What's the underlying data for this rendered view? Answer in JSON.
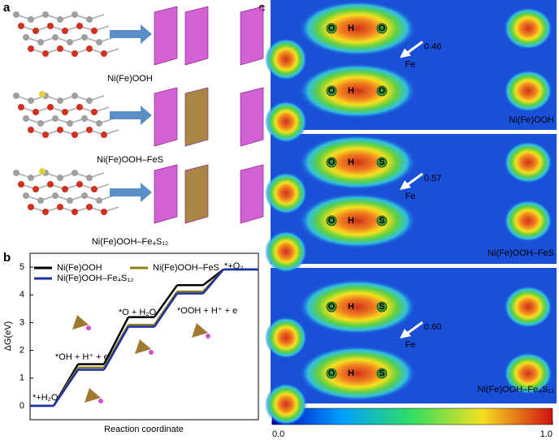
{
  "panel_a": {
    "letter": "a",
    "labels": [
      "Ni(Fe)OOH",
      "Ni(Fe)OOH–FeS",
      "Ni(Fe)OOH–Fe₄S₁₂"
    ]
  },
  "chart_data": {
    "type": "step",
    "letter": "b",
    "categories": [
      "*+H₂O",
      "*OH + H⁺ + e",
      "*O + H₂O",
      "*OOH + H⁺ + e",
      "*+O₂"
    ],
    "series": [
      {
        "name": "Ni(Fe)OOH",
        "color": "#000000",
        "values": [
          0,
          1.5,
          3.2,
          4.35,
          4.92
        ]
      },
      {
        "name": "Ni(Fe)OOH–FeS",
        "color": "#8b7d1a",
        "values": [
          0,
          1.38,
          2.92,
          4.12,
          4.92
        ]
      },
      {
        "name": "Ni(Fe)OOH–Fe₄S₁₂",
        "color": "#1a2fa0",
        "values": [
          0,
          1.3,
          2.85,
          4.05,
          4.92
        ]
      }
    ],
    "ylabel": "ΔG(eV)",
    "xlabel": "Reaction coordinate",
    "ylim": [
      -0.5,
      5.5
    ],
    "yticks": [
      0,
      1,
      2,
      3,
      4,
      5
    ]
  },
  "panel_c": {
    "letter": "c",
    "bands": [
      {
        "name": "Ni(Fe)OOH",
        "atoms": [
          "O",
          "H",
          "O"
        ],
        "fe": "Fe",
        "distance": "0.46"
      },
      {
        "name": "Ni(Fe)OOH–FeS",
        "atoms": [
          "O",
          "H",
          "S"
        ],
        "fe": "Fe",
        "distance": "0.57"
      },
      {
        "name": "Ni(Fe)OOH–Fe₄S₁₂",
        "atoms": [
          "O",
          "H",
          "S"
        ],
        "fe": "Fe",
        "distance": "0.60"
      }
    ],
    "colorbar": {
      "ticks": [
        {
          "value": 0,
          "label": "0.0"
        },
        {
          "value": 1,
          "label": "1.0"
        }
      ]
    }
  }
}
